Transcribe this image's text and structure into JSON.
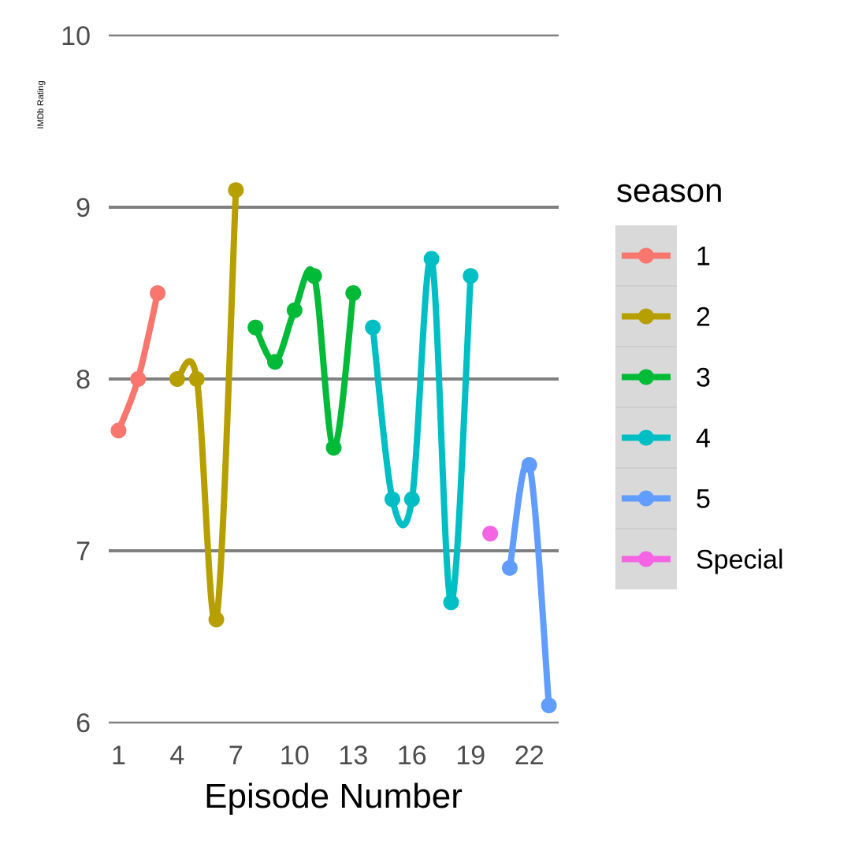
{
  "chart_data": {
    "type": "line",
    "title": "",
    "xlabel": "Episode Number",
    "ylabel": "IMDb Rating",
    "xlim": [
      0.5,
      23.5
    ],
    "ylim": [
      6,
      10
    ],
    "x_ticks": [
      1,
      4,
      7,
      10,
      13,
      16,
      19,
      22
    ],
    "y_ticks": [
      6,
      7,
      8,
      9,
      10
    ],
    "grid": "horizontal",
    "legend": {
      "title": "season",
      "placement": "right"
    },
    "series": [
      {
        "name": "1",
        "color": "#F8766D",
        "x": [
          1,
          2,
          3
        ],
        "y": [
          7.7,
          8.0,
          8.5
        ]
      },
      {
        "name": "2",
        "color": "#B79F00",
        "x": [
          4,
          5,
          6,
          7
        ],
        "y": [
          8.0,
          8.0,
          6.6,
          9.1
        ]
      },
      {
        "name": "3",
        "color": "#00BA38",
        "x": [
          8,
          9,
          10,
          11,
          12,
          13
        ],
        "y": [
          8.3,
          8.1,
          8.4,
          8.6,
          7.6,
          8.5
        ]
      },
      {
        "name": "4",
        "color": "#00BFC4",
        "x": [
          14,
          15,
          16,
          17,
          18,
          19
        ],
        "y": [
          8.3,
          7.3,
          7.3,
          8.7,
          6.7,
          8.6
        ]
      },
      {
        "name": "5",
        "color": "#619CFF",
        "x": [
          21,
          22,
          23
        ],
        "y": [
          6.9,
          7.5,
          6.1
        ]
      },
      {
        "name": "Special",
        "color": "#F564E3",
        "x": [
          20
        ],
        "y": [
          7.1
        ]
      }
    ]
  }
}
